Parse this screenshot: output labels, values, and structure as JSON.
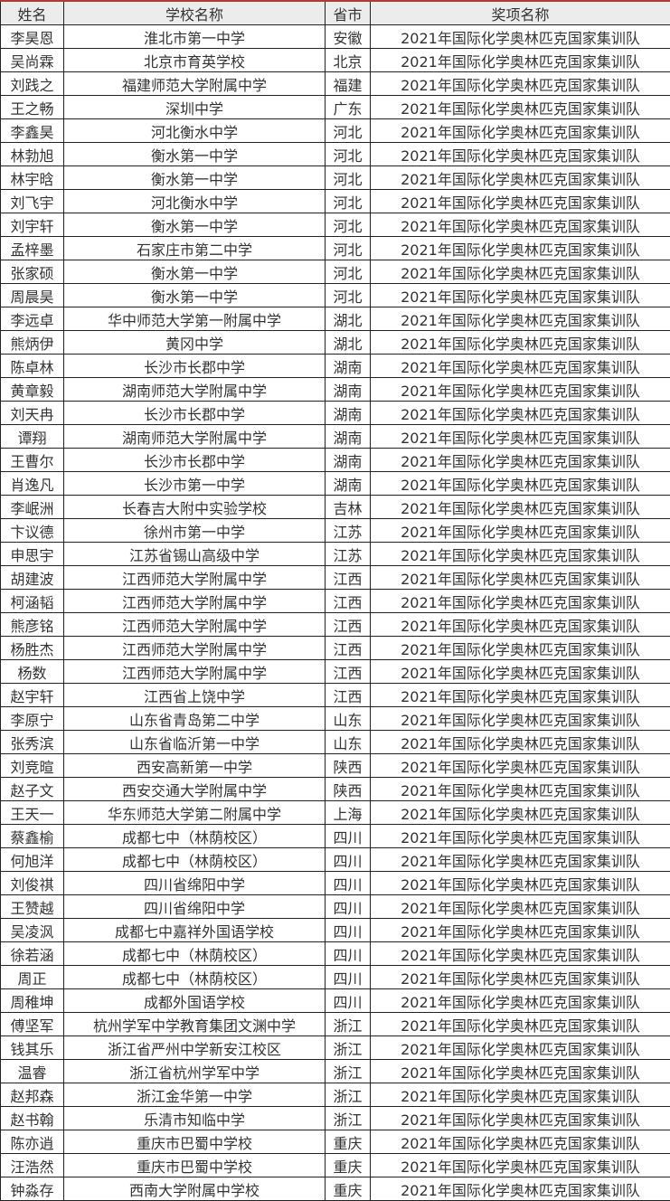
{
  "headers": [
    "姓名",
    "学校名称",
    "省市",
    "奖项名称"
  ],
  "rows": [
    [
      "李昊恩",
      "淮北市第一中学",
      "安徽",
      "2021年国际化学奥林匹克国家集训队"
    ],
    [
      "吴尚霖",
      "北京市育英学校",
      "北京",
      "2021年国际化学奥林匹克国家集训队"
    ],
    [
      "刘践之",
      "福建师范大学附属中学",
      "福建",
      "2021年国际化学奥林匹克国家集训队"
    ],
    [
      "王之畅",
      "深圳中学",
      "广东",
      "2021年国际化学奥林匹克国家集训队"
    ],
    [
      "李鑫昊",
      "河北衡水中学",
      "河北",
      "2021年国际化学奥林匹克国家集训队"
    ],
    [
      "林勃旭",
      "衡水第一中学",
      "河北",
      "2021年国际化学奥林匹克国家集训队"
    ],
    [
      "林宇晗",
      "衡水第一中学",
      "河北",
      "2021年国际化学奥林匹克国家集训队"
    ],
    [
      "刘飞宇",
      "河北衡水中学",
      "河北",
      "2021年国际化学奥林匹克国家集训队"
    ],
    [
      "刘宇轩",
      "衡水第一中学",
      "河北",
      "2021年国际化学奥林匹克国家集训队"
    ],
    [
      "孟梓墨",
      "石家庄市第二中学",
      "河北",
      "2021年国际化学奥林匹克国家集训队"
    ],
    [
      "张家硕",
      "衡水第一中学",
      "河北",
      "2021年国际化学奥林匹克国家集训队"
    ],
    [
      "周晨昊",
      "衡水第一中学",
      "河北",
      "2021年国际化学奥林匹克国家集训队"
    ],
    [
      "李远卓",
      "华中师范大学第一附属中学",
      "湖北",
      "2021年国际化学奥林匹克国家集训队"
    ],
    [
      "熊炳伊",
      "黄冈中学",
      "湖北",
      "2021年国际化学奥林匹克国家集训队"
    ],
    [
      "陈卓林",
      "长沙市长郡中学",
      "湖南",
      "2021年国际化学奥林匹克国家集训队"
    ],
    [
      "黄章毅",
      "湖南师范大学附属中学",
      "湖南",
      "2021年国际化学奥林匹克国家集训队"
    ],
    [
      "刘天冉",
      "长沙市长郡中学",
      "湖南",
      "2021年国际化学奥林匹克国家集训队"
    ],
    [
      "谭翔",
      "湖南师范大学附属中学",
      "湖南",
      "2021年国际化学奥林匹克国家集训队"
    ],
    [
      "王曹尔",
      "长沙市长郡中学",
      "湖南",
      "2021年国际化学奥林匹克国家集训队"
    ],
    [
      "肖逸凡",
      "长沙市第一中学",
      "湖南",
      "2021年国际化学奥林匹克国家集训队"
    ],
    [
      "李岷洲",
      "长春吉大附中实验学校",
      "吉林",
      "2021年国际化学奥林匹克国家集训队"
    ],
    [
      "卞议德",
      "徐州市第一中学",
      "江苏",
      "2021年国际化学奥林匹克国家集训队"
    ],
    [
      "申思宇",
      "江苏省锡山高级中学",
      "江苏",
      "2021年国际化学奥林匹克国家集训队"
    ],
    [
      "胡建波",
      "江西师范大学附属中学",
      "江西",
      "2021年国际化学奥林匹克国家集训队"
    ],
    [
      "柯涵韬",
      "江西师范大学附属中学",
      "江西",
      "2021年国际化学奥林匹克国家集训队"
    ],
    [
      "熊彦铭",
      "江西师范大学附属中学",
      "江西",
      "2021年国际化学奥林匹克国家集训队"
    ],
    [
      "杨胜杰",
      "江西师范大学附属中学",
      "江西",
      "2021年国际化学奥林匹克国家集训队"
    ],
    [
      "杨数",
      "江西师范大学附属中学",
      "江西",
      "2021年国际化学奥林匹克国家集训队"
    ],
    [
      "赵宇轩",
      "江西省上饶中学",
      "江西",
      "2021年国际化学奥林匹克国家集训队"
    ],
    [
      "李原宁",
      "山东省青岛第二中学",
      "山东",
      "2021年国际化学奥林匹克国家集训队"
    ],
    [
      "张秀滨",
      "山东省临沂第一中学",
      "山东",
      "2021年国际化学奥林匹克国家集训队"
    ],
    [
      "刘竞暄",
      "西安高新第一中学",
      "陕西",
      "2021年国际化学奥林匹克国家集训队"
    ],
    [
      "赵子文",
      "西安交通大学附属中学",
      "陕西",
      "2021年国际化学奥林匹克国家集训队"
    ],
    [
      "王天一",
      "华东师范大学第二附属中学",
      "上海",
      "2021年国际化学奥林匹克国家集训队"
    ],
    [
      "蔡鑫榆",
      "成都七中（林荫校区）",
      "四川",
      "2021年国际化学奥林匹克国家集训队"
    ],
    [
      "何旭洋",
      "成都七中（林荫校区）",
      "四川",
      "2021年国际化学奥林匹克国家集训队"
    ],
    [
      "刘俊祺",
      "四川省绵阳中学",
      "四川",
      "2021年国际化学奥林匹克国家集训队"
    ],
    [
      "王赞越",
      "四川省绵阳中学",
      "四川",
      "2021年国际化学奥林匹克国家集训队"
    ],
    [
      "吴凌沨",
      "成都七中嘉祥外国语学校",
      "四川",
      "2021年国际化学奥林匹克国家集训队"
    ],
    [
      "徐若涵",
      "成都七中（林荫校区）",
      "四川",
      "2021年国际化学奥林匹克国家集训队"
    ],
    [
      "周正",
      "成都七中（林荫校区）",
      "四川",
      "2021年国际化学奥林匹克国家集训队"
    ],
    [
      "周稚坤",
      "成都外国语学校",
      "四川",
      "2021年国际化学奥林匹克国家集训队"
    ],
    [
      "傅坚军",
      "杭州学军中学教育集团文渊中学",
      "浙江",
      "2021年国际化学奥林匹克国家集训队"
    ],
    [
      "钱其乐",
      "浙江省严州中学新安江校区",
      "浙江",
      "2021年国际化学奥林匹克国家集训队"
    ],
    [
      "温睿",
      "浙江省杭州学军中学",
      "浙江",
      "2021年国际化学奥林匹克国家集训队"
    ],
    [
      "赵邦森",
      "浙江金华第一中学",
      "浙江",
      "2021年国际化学奥林匹克国家集训队"
    ],
    [
      "赵书翰",
      "乐清市知临中学",
      "浙江",
      "2021年国际化学奥林匹克国家集训队"
    ],
    [
      "陈亦逍",
      "重庆市巴蜀中学校",
      "重庆",
      "2021年国际化学奥林匹克国家集训队"
    ],
    [
      "汪浩然",
      "重庆市巴蜀中学校",
      "重庆",
      "2021年国际化学奥林匹克国家集训队"
    ],
    [
      "钟淼存",
      "西南大学附属中学校",
      "重庆",
      "2021年国际化学奥林匹克国家集训队"
    ]
  ]
}
